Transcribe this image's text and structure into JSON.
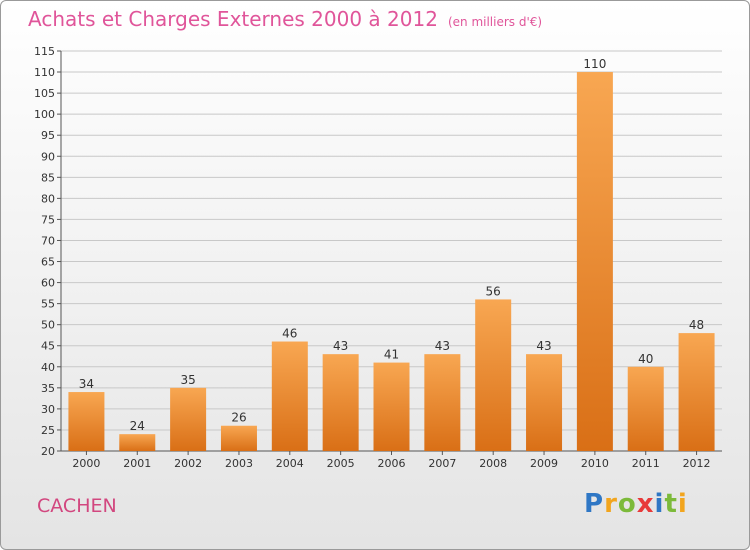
{
  "title": {
    "main": "Achats et Charges Externes 2000 à 2012",
    "unit": "(en milliers d'€)"
  },
  "commune": "CACHEN",
  "logo": {
    "text": "Proxiti",
    "letters": [
      {
        "ch": "P",
        "color": "#2f77c5"
      },
      {
        "ch": "r",
        "color": "#f2a51e"
      },
      {
        "ch": "o",
        "color": "#7cba3a"
      },
      {
        "ch": "x",
        "color": "#e83a3a"
      },
      {
        "ch": "i",
        "color": "#2f77c5"
      },
      {
        "ch": "t",
        "color": "#7cba3a"
      },
      {
        "ch": "i",
        "color": "#f2a51e"
      }
    ]
  },
  "colors": {
    "bar_top": "#f8a752",
    "bar_bottom": "#d96f16",
    "title": "#e0559a",
    "commune": "#d2477f",
    "grid": "#c8c8c8"
  },
  "chart_data": {
    "type": "bar",
    "categories": [
      "2000",
      "2001",
      "2002",
      "2003",
      "2004",
      "2005",
      "2006",
      "2007",
      "2008",
      "2009",
      "2010",
      "2011",
      "2012"
    ],
    "values": [
      34,
      24,
      35,
      26,
      46,
      43,
      41,
      43,
      56,
      43,
      110,
      40,
      48
    ],
    "ylim": [
      20,
      115
    ],
    "yticks": [
      20,
      25,
      30,
      35,
      40,
      45,
      50,
      55,
      60,
      65,
      70,
      75,
      80,
      85,
      90,
      95,
      100,
      105,
      110,
      115
    ],
    "grid": true,
    "data_labels": true
  }
}
